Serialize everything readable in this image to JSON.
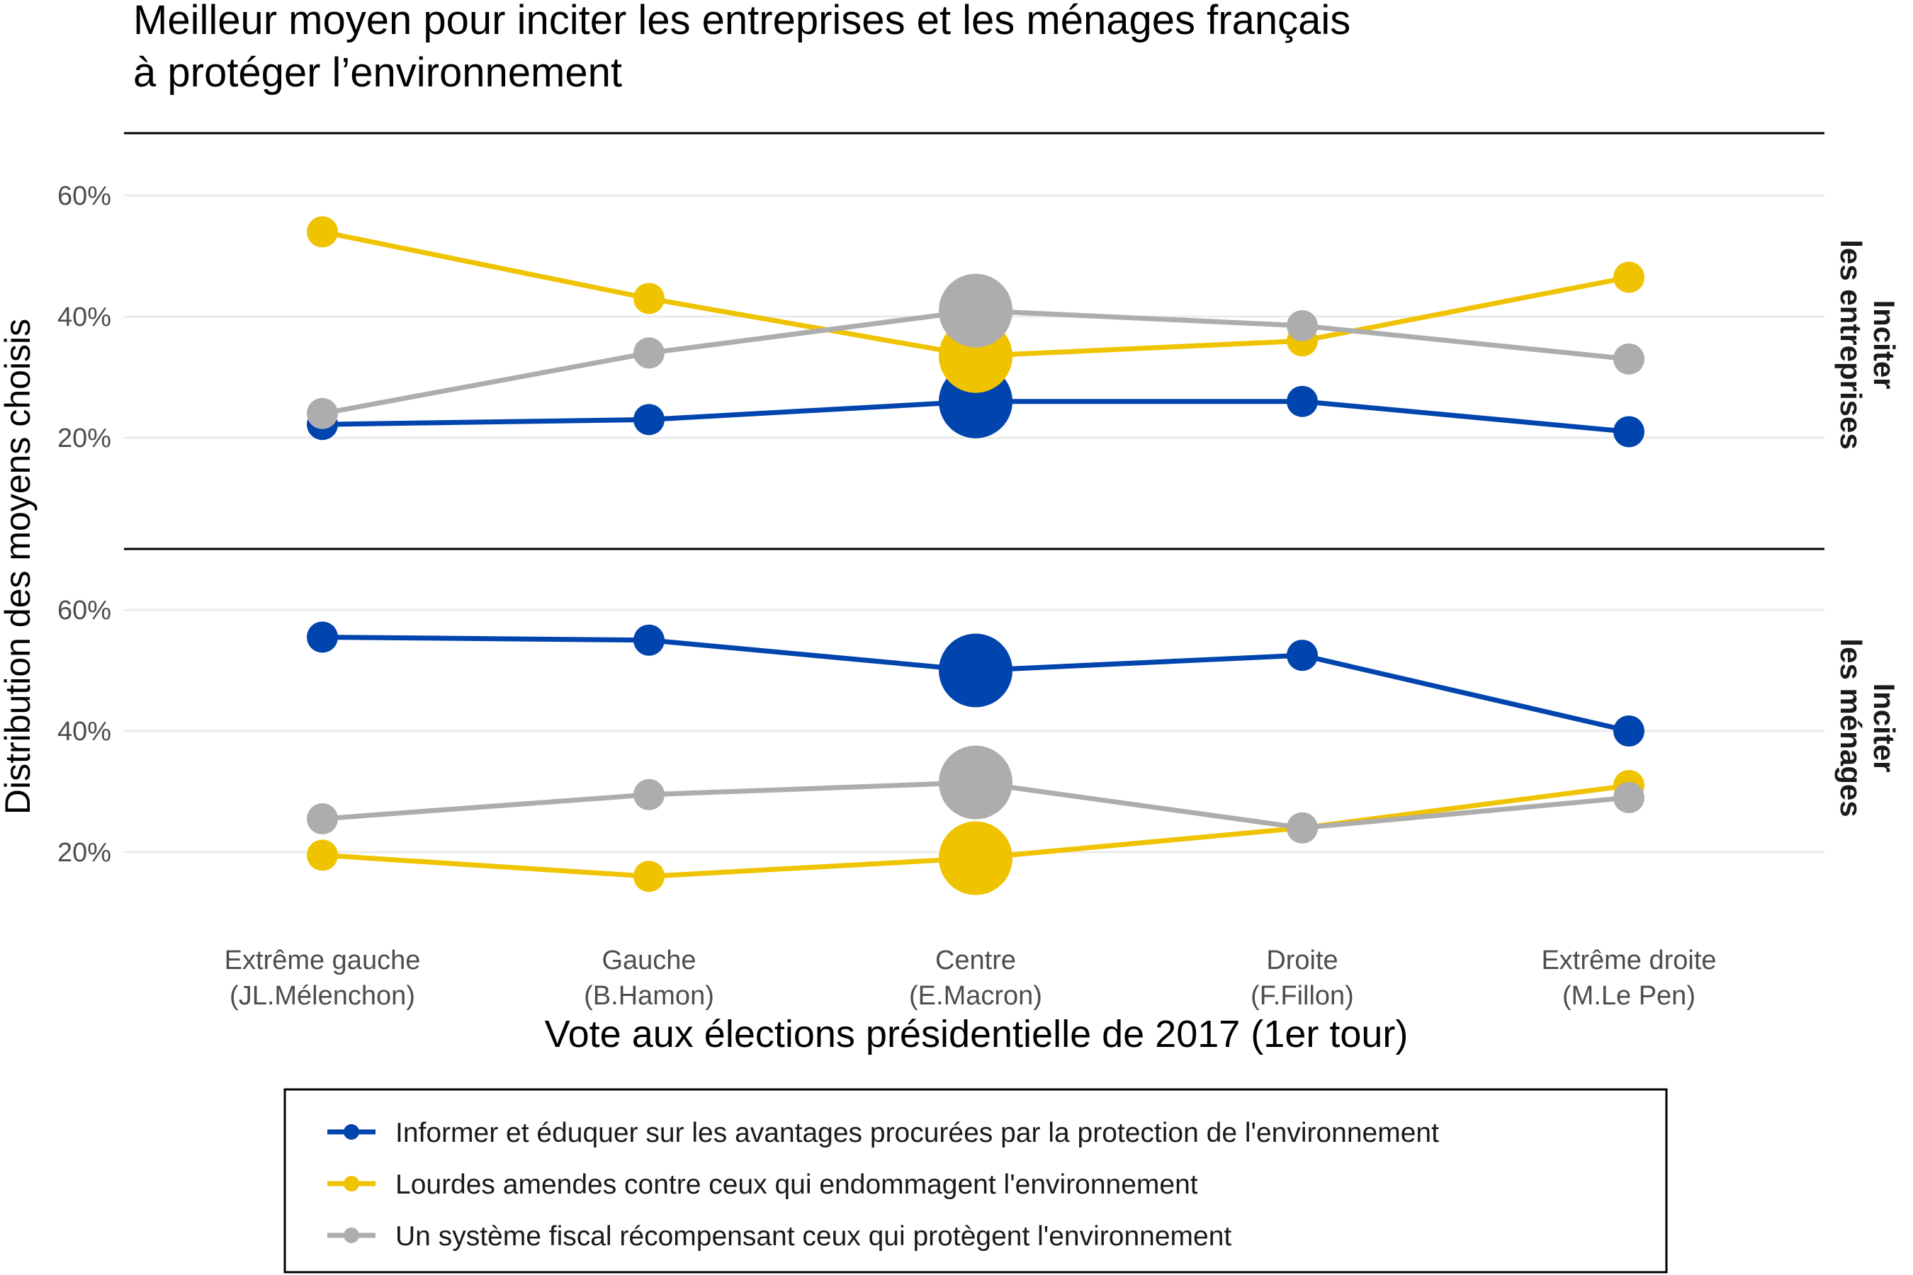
{
  "chart_data": {
    "type": "line",
    "title_line1": "Meilleur moyen pour inciter les entreprises et les ménages français",
    "title_line2": " à protéger l’environnement",
    "xlabel": "Vote aux élections présidentielle de 2017 (1er tour)",
    "ylabel": "Distribution des moyens choisis",
    "categories": [
      {
        "line1": "Extrême gauche",
        "line2": "(JL.Mélenchon)"
      },
      {
        "line1": "Gauche",
        "line2": "(B.Hamon)"
      },
      {
        "line1": "Centre",
        "line2": "(E.Macron)"
      },
      {
        "line1": "Droite",
        "line2": "(F.Fillon)"
      },
      {
        "line1": "Extrême droite",
        "line2": "(M.Le Pen)"
      }
    ],
    "y_ticks": [
      "20%",
      "40%",
      "60%"
    ],
    "ylim": [
      5,
      70
    ],
    "highlight_category_index": 2,
    "panels": [
      {
        "strip_line1": "Inciter",
        "strip_line2": "les entreprises",
        "series": [
          {
            "name": "Informer et éduquer sur les avantages procurées par la protection de l'environnement",
            "color": "#0044ad",
            "values": [
              22.2,
              23.0,
              26.0,
              26.0,
              21.0
            ]
          },
          {
            "name": "Lourdes amendes contre ceux qui endommagent l'environnement",
            "color": "#f0c300",
            "values": [
              54.0,
              43.0,
              33.5,
              36.0,
              46.5
            ]
          },
          {
            "name": "Un système fiscal récompensant ceux qui protègent l'environnement",
            "color": "#adadad",
            "values": [
              24.0,
              34.0,
              41.0,
              38.5,
              33.0
            ]
          }
        ]
      },
      {
        "strip_line1": "Inciter",
        "strip_line2": "les ménages",
        "series": [
          {
            "name": "Informer et éduquer sur les avantages procurées par la protection de l'environnement",
            "color": "#0044ad",
            "values": [
              55.5,
              55.0,
              50.0,
              52.5,
              40.0
            ]
          },
          {
            "name": "Lourdes amendes contre ceux qui endommagent l'environnement",
            "color": "#f0c300",
            "values": [
              19.5,
              16.0,
              19.0,
              24.0,
              31.0
            ]
          },
          {
            "name": "Un système fiscal récompensant ceux qui protègent l'environnement",
            "color": "#adadad",
            "values": [
              25.5,
              29.5,
              31.5,
              24.0,
              29.0
            ]
          }
        ]
      }
    ],
    "legend": {
      "placement": "bottom",
      "items": [
        {
          "label": "Informer et éduquer sur les avantages procurées par la protection de l'environnement",
          "color": "#0044ad"
        },
        {
          "label": "Lourdes amendes contre ceux qui endommagent l'environnement",
          "color": "#f0c300"
        },
        {
          "label": "Un système fiscal récompensant ceux qui protègent l'environnement",
          "color": "#adadad"
        }
      ]
    },
    "grid": true
  }
}
